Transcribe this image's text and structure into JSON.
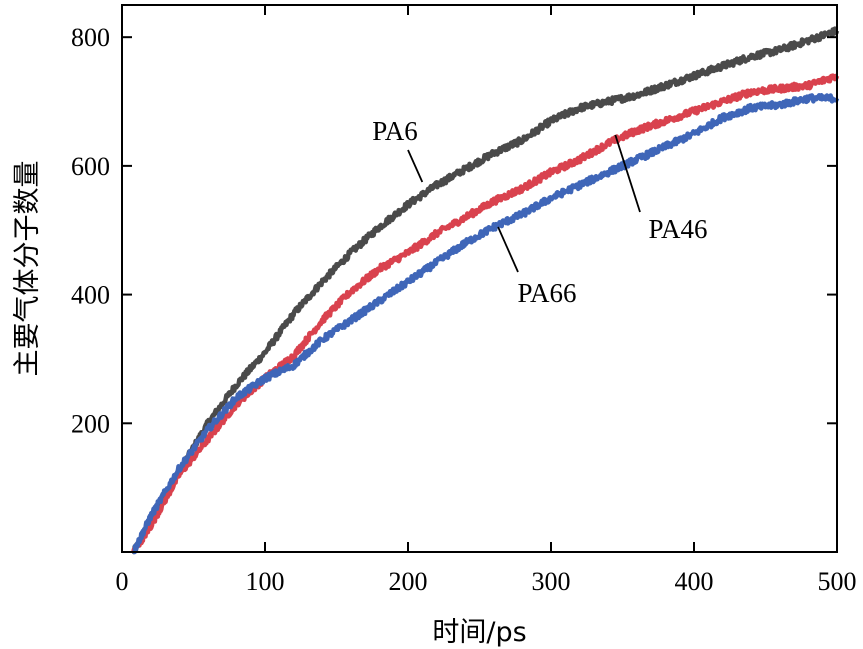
{
  "chart_data": {
    "type": "line",
    "xlabel": "时间/ps",
    "ylabel": "主要气体分子数量",
    "xlim": [
      0,
      500
    ],
    "ylim": [
      0,
      850
    ],
    "x_ticks": [
      0,
      100,
      200,
      300,
      400,
      500
    ],
    "y_ticks": [
      200,
      400,
      600,
      800
    ],
    "x": [
      8,
      20,
      40,
      60,
      80,
      100,
      120,
      140,
      160,
      180,
      200,
      220,
      240,
      260,
      280,
      300,
      320,
      340,
      360,
      380,
      400,
      420,
      440,
      460,
      480,
      500
    ],
    "series": [
      {
        "name": "PA6",
        "color": "#4a4a4a",
        "values": [
          0,
          45,
          125,
          200,
          260,
          310,
          370,
          420,
          465,
          505,
          540,
          570,
          595,
          620,
          640,
          670,
          690,
          700,
          710,
          725,
          740,
          755,
          770,
          780,
          795,
          810
        ]
      },
      {
        "name": "PA46",
        "color": "#d9424e",
        "values": [
          0,
          40,
          120,
          175,
          230,
          270,
          305,
          360,
          405,
          440,
          465,
          495,
          520,
          545,
          565,
          590,
          610,
          635,
          655,
          670,
          685,
          700,
          715,
          720,
          725,
          740
        ]
      },
      {
        "name": "PA66",
        "color": "#3f66b8",
        "values": [
          0,
          55,
          130,
          190,
          240,
          270,
          290,
          330,
          360,
          390,
          420,
          450,
          480,
          505,
          525,
          550,
          570,
          590,
          610,
          630,
          650,
          675,
          690,
          695,
          705,
          705
        ]
      }
    ],
    "annotations": [
      {
        "text": "PA6",
        "series": 0
      },
      {
        "text": "PA46",
        "series": 1
      },
      {
        "text": "PA66",
        "series": 2
      }
    ],
    "grid": false,
    "legend": "none"
  }
}
